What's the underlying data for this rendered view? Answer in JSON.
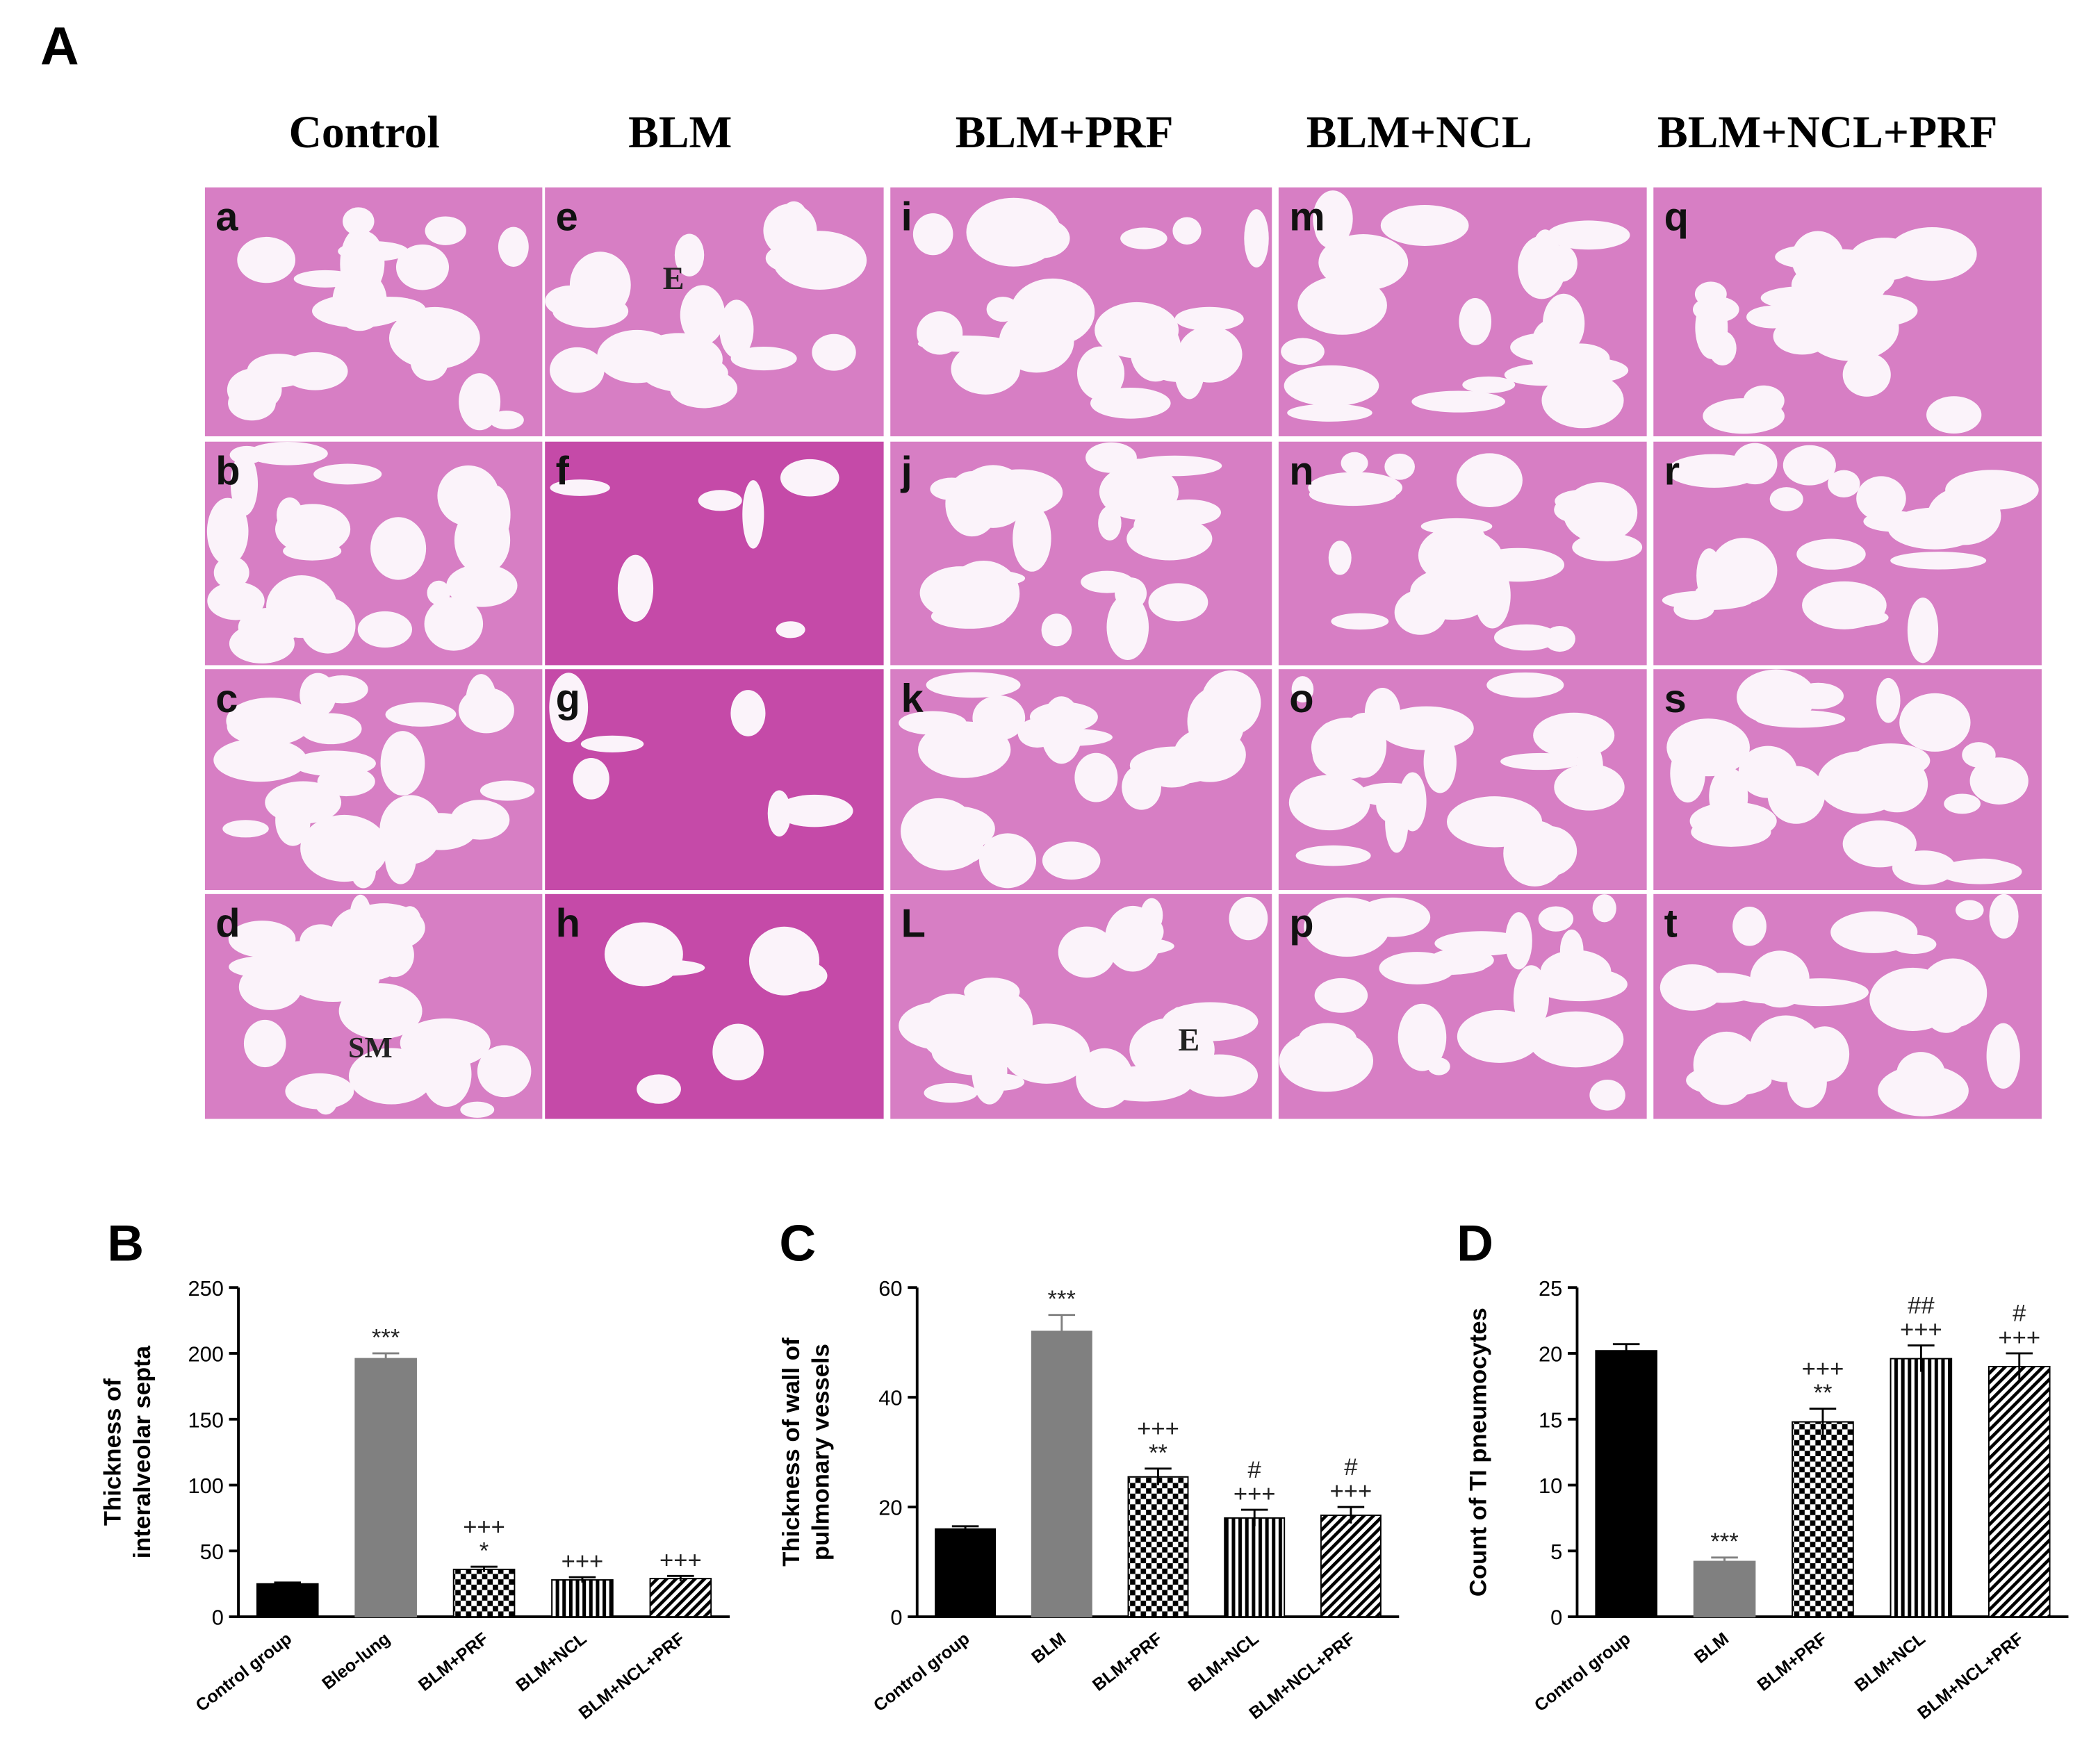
{
  "panel_a": {
    "label": "A",
    "columns": [
      "Control",
      "BLM",
      "BLM+PRF",
      "BLM+NCL",
      "BLM+NCL+PRF"
    ],
    "panels": [
      [
        "a",
        "b",
        "c",
        "d"
      ],
      [
        "e",
        "f",
        "g",
        "h"
      ],
      [
        "i",
        "j",
        "k",
        "L"
      ],
      [
        "m",
        "n",
        "o",
        "p"
      ],
      [
        "q",
        "r",
        "s",
        "t"
      ]
    ],
    "image_labels": [
      "E",
      "SM",
      "E"
    ]
  },
  "chart_data": [
    {
      "type": "bar",
      "label": "B",
      "ylabel": [
        "Thickness of",
        "interalveolar septa"
      ],
      "categories": [
        "Control group",
        "Bleo-lung",
        "BLM+PRF",
        "BLM+NCL",
        "BLM+NCL+PRF"
      ],
      "values": [
        25,
        196,
        36,
        28,
        29
      ],
      "errors": [
        1,
        4,
        2,
        2,
        2
      ],
      "colors": [
        "#000000",
        "#808080",
        "#000000",
        "#000000",
        "#000000"
      ],
      "patterns": [
        "solid",
        "solid",
        "checker",
        "vertical",
        "diagonal"
      ],
      "annotations": [
        null,
        [
          "***"
        ],
        [
          "+++",
          "*"
        ],
        [
          "+++"
        ],
        [
          "+++"
        ]
      ],
      "ylim": [
        0,
        250
      ],
      "yticks": [
        0,
        50,
        100,
        150,
        200,
        250
      ]
    },
    {
      "type": "bar",
      "label": "C",
      "ylabel": [
        "Thickness of wall of",
        "pulmonary vessels"
      ],
      "categories": [
        "Control group",
        "BLM",
        "BLM+PRF",
        "BLM+NCL",
        "BLM+NCL+PRF"
      ],
      "values": [
        16,
        52,
        25.5,
        18,
        18.5
      ],
      "errors": [
        0.5,
        3,
        1.5,
        1.5,
        1.5
      ],
      "colors": [
        "#000000",
        "#808080",
        "#000000",
        "#000000",
        "#000000"
      ],
      "patterns": [
        "solid",
        "solid",
        "checker",
        "vertical",
        "diagonal"
      ],
      "annotations": [
        null,
        [
          "***"
        ],
        [
          "+++",
          "**"
        ],
        [
          "#",
          "+++"
        ],
        [
          "#",
          "+++"
        ]
      ],
      "ylim": [
        0,
        60
      ],
      "yticks": [
        0,
        20,
        40,
        60
      ]
    },
    {
      "type": "bar",
      "label": "D",
      "ylabel": [
        "Count of TI pneumocytes"
      ],
      "categories": [
        "Control group",
        "BLM",
        "BLM+PRF",
        "BLM+NCL",
        "BLM+NCL+PRF"
      ],
      "values": [
        20.2,
        4.2,
        14.8,
        19.6,
        19.0
      ],
      "errors": [
        0.5,
        0.3,
        1,
        1,
        1
      ],
      "colors": [
        "#000000",
        "#808080",
        "#000000",
        "#000000",
        "#000000"
      ],
      "patterns": [
        "solid",
        "solid",
        "checker",
        "vertical",
        "diagonal"
      ],
      "annotations": [
        null,
        [
          "***"
        ],
        [
          "+++",
          "**"
        ],
        [
          "##",
          "+++"
        ],
        [
          "#",
          "+++"
        ]
      ],
      "ylim": [
        0,
        25
      ],
      "yticks": [
        0,
        5,
        10,
        15,
        20,
        25
      ]
    }
  ]
}
